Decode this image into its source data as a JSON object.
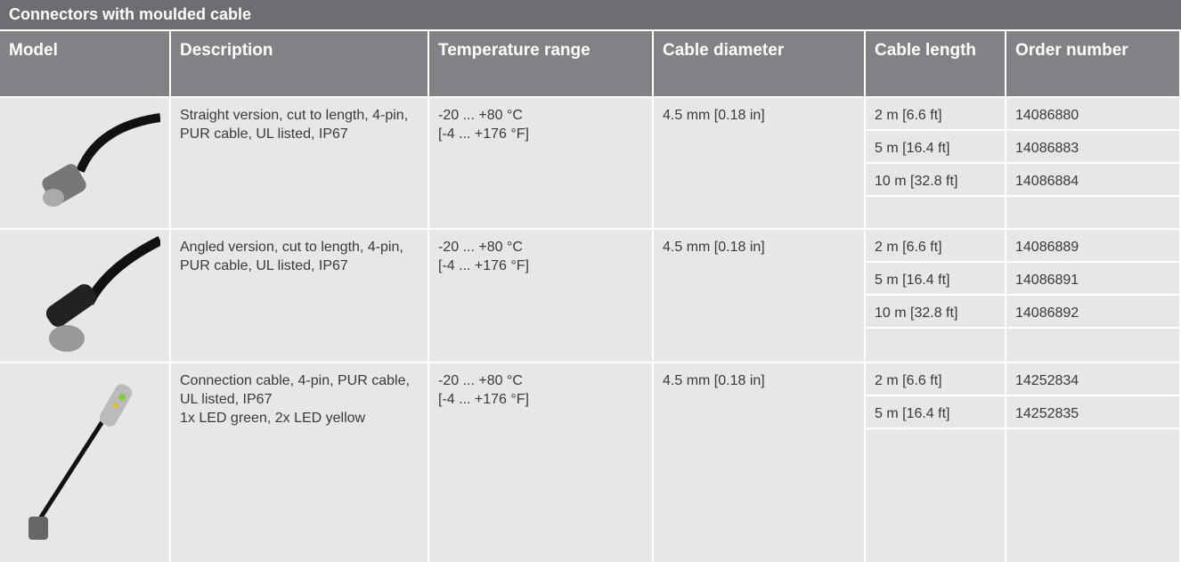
{
  "header": {
    "title": "Connectors with moulded cable"
  },
  "table": {
    "columns": [
      "Model",
      "Description",
      "Temperature range",
      "Cable diameter",
      "Cable length",
      "Order number"
    ],
    "rows": [
      {
        "description": [
          "Straight version, cut to length, 4-pin, PUR cable, UL listed, IP67"
        ],
        "temperature": [
          "-20 ... +80 °C",
          "[-4 ... +176 °F]"
        ],
        "diameter": "4.5 mm [0.18 in]",
        "variants": [
          {
            "length": "2 m [6.6 ft]",
            "order": "14086880"
          },
          {
            "length": "5 m [16.4 ft]",
            "order": "14086883"
          },
          {
            "length": "10 m [32.8 ft]",
            "order": "14086884"
          }
        ]
      },
      {
        "description": [
          "Angled version, cut to length, 4-pin, PUR cable, UL listed, IP67"
        ],
        "temperature": [
          "-20 ... +80 °C",
          "[-4 ... +176 °F]"
        ],
        "diameter": "4.5 mm [0.18 in]",
        "variants": [
          {
            "length": "2 m [6.6 ft]",
            "order": "14086889"
          },
          {
            "length": "5 m [16.4 ft]",
            "order": "14086891"
          },
          {
            "length": "10 m [32.8 ft]",
            "order": "14086892"
          }
        ]
      },
      {
        "description": [
          "Connection cable, 4-pin, PUR cable, UL listed, IP67",
          "1x LED green, 2x LED yellow"
        ],
        "temperature": [
          "-20 ... +80 °C",
          "[-4 ... +176 °F]"
        ],
        "diameter": "4.5 mm [0.18 in]",
        "variants": [
          {
            "length": "2 m [6.6 ft]",
            "order": "14252834"
          },
          {
            "length": "5 m [16.4 ft]",
            "order": "14252835"
          }
        ]
      }
    ]
  }
}
